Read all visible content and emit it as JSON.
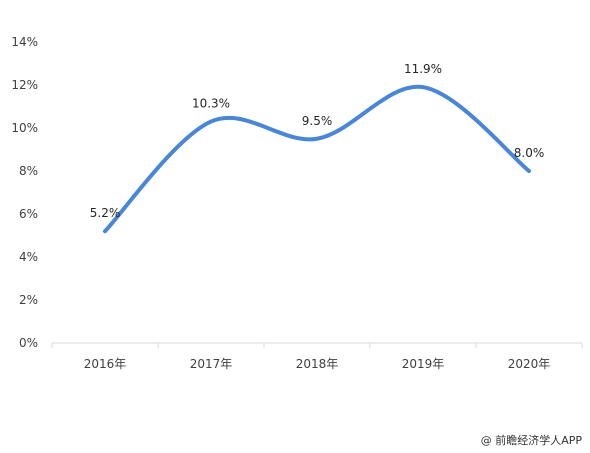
{
  "chart_data": {
    "type": "line",
    "categories": [
      "2016年",
      "2017年",
      "2018年",
      "2019年",
      "2020年"
    ],
    "series": [
      {
        "values": [
          5.2,
          10.3,
          9.5,
          11.9,
          8.0
        ],
        "labels": [
          "5.2%",
          "10.3%",
          "9.5%",
          "11.9%",
          "8.0%"
        ]
      }
    ],
    "yticks": [
      "0%",
      "2%",
      "4%",
      "6%",
      "8%",
      "10%",
      "12%",
      "14%"
    ],
    "ylim": [
      0,
      14
    ],
    "grid": false,
    "smooth": true,
    "colors": {
      "line": "#4a86d8",
      "axis": "#d9d9d9"
    }
  },
  "watermark": "@ 前瞻经济学人APP"
}
